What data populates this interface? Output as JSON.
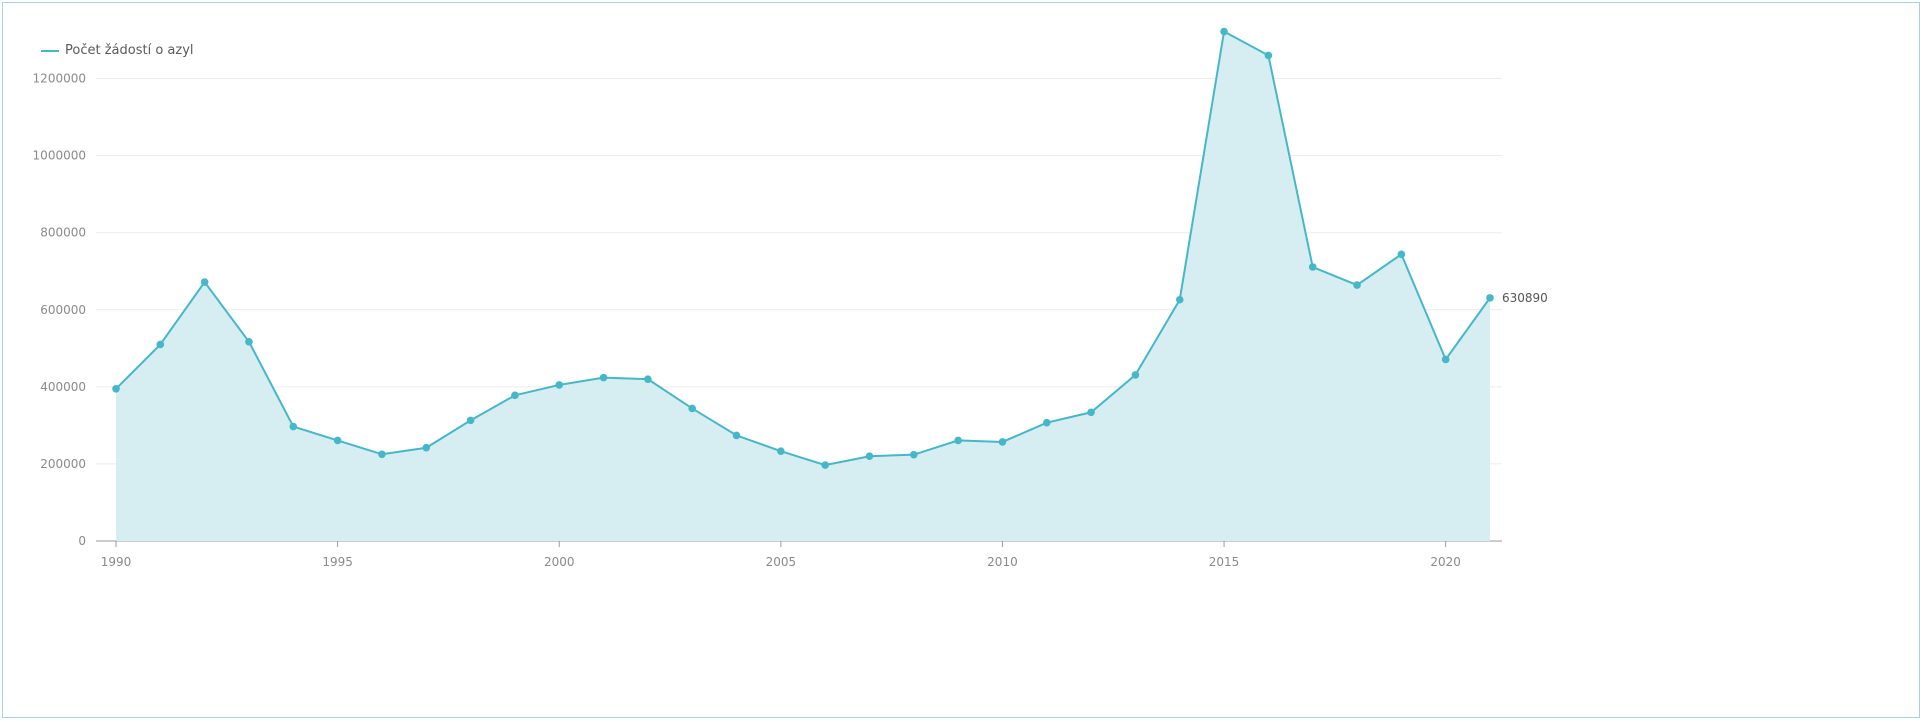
{
  "chart_data": {
    "type": "area",
    "title": "",
    "xlabel": "",
    "ylabel": "",
    "legend": {
      "position": "top-left"
    },
    "grid": true,
    "xlim": [
      1990,
      2021
    ],
    "ylim": [
      0,
      1300000
    ],
    "x_ticks": [
      "1990",
      "1995",
      "2000",
      "2005",
      "2010",
      "2015",
      "2020"
    ],
    "y_ticks": [
      "0",
      "200000",
      "400000",
      "600000",
      "800000",
      "1000000",
      "1200000"
    ],
    "x": [
      1990,
      1991,
      1992,
      1993,
      1994,
      1995,
      1996,
      1997,
      1998,
      1999,
      2000,
      2001,
      2002,
      2003,
      2004,
      2005,
      2006,
      2007,
      2008,
      2009,
      2010,
      2011,
      2012,
      2013,
      2014,
      2015,
      2016,
      2017,
      2018,
      2019,
      2020,
      2021
    ],
    "series": [
      {
        "name": "Počet žádostí o azyl",
        "color": "#45b7c6",
        "fill": "#d6eef2",
        "values": [
          395000,
          510000,
          672000,
          517000,
          297000,
          261000,
          225000,
          242000,
          313000,
          378000,
          405000,
          424000,
          420000,
          344000,
          274000,
          233000,
          197000,
          220000,
          224000,
          261000,
          257000,
          307000,
          334000,
          431000,
          626000,
          1322000,
          1260000,
          711000,
          664000,
          744000,
          471000,
          630890
        ]
      }
    ],
    "end_label": "630890"
  }
}
